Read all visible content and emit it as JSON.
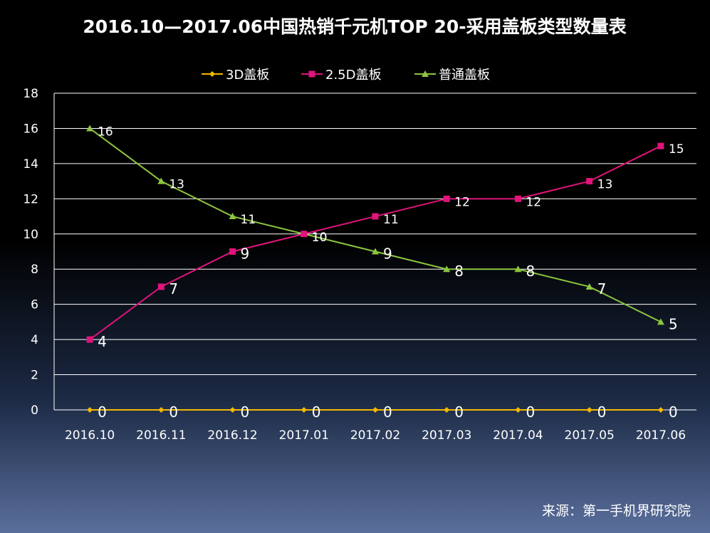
{
  "chart_data": {
    "type": "line",
    "title": "2016.10—2017.06中国热销千元机TOP 20-采用盖板类型数量表",
    "categories": [
      "2016.10",
      "2016.11",
      "2016.12",
      "2017.01",
      "2017.02",
      "2017.03",
      "2017.04",
      "2017.05",
      "2017.06"
    ],
    "ylim": [
      0,
      18
    ],
    "yticks": [
      0,
      2,
      4,
      6,
      8,
      10,
      12,
      14,
      16,
      18
    ],
    "grid": true,
    "legend_position": "top",
    "series": [
      {
        "name": "3D盖板",
        "color": "#f5b800",
        "marker": "diamond",
        "values": [
          0,
          0,
          0,
          0,
          0,
          0,
          0,
          0,
          0
        ]
      },
      {
        "name": "2.5D盖板",
        "color": "#e0147a",
        "marker": "square",
        "values": [
          4,
          7,
          9,
          10,
          11,
          12,
          12,
          13,
          15
        ]
      },
      {
        "name": "普通盖板",
        "color": "#8cc63f",
        "marker": "triangle",
        "values": [
          16,
          13,
          11,
          10,
          9,
          8,
          8,
          7,
          5
        ]
      }
    ],
    "source": "来源：第一手机界研究院"
  }
}
